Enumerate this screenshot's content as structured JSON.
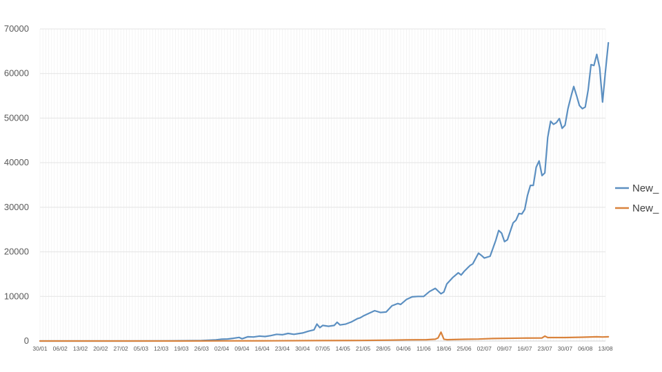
{
  "chart_data": {
    "type": "line",
    "title": "",
    "xlabel": "",
    "ylabel": "",
    "ylim": [
      0,
      70000
    ],
    "yticks": [
      0,
      10000,
      20000,
      30000,
      40000,
      50000,
      60000,
      70000
    ],
    "x_start": "30/01",
    "x_end": "13/08",
    "x_ticks": [
      "30/01",
      "06/02",
      "13/02",
      "20/02",
      "27/02",
      "05/03",
      "12/03",
      "19/03",
      "26/03",
      "02/04",
      "09/04",
      "16/04",
      "23/04",
      "30/04",
      "07/05",
      "14/05",
      "21/05",
      "28/05",
      "04/06",
      "11/06",
      "18/06",
      "25/06",
      "02/07",
      "09/07",
      "16/07",
      "23/07",
      "30/07",
      "06/08",
      "13/08"
    ],
    "grid": true,
    "legend_position": "right",
    "series": [
      {
        "name": "New_",
        "color": "#5b8fc1",
        "points": [
          [
            "30/01",
            0
          ],
          [
            "01/03",
            0
          ],
          [
            "14/03",
            10
          ],
          [
            "20/03",
            60
          ],
          [
            "26/03",
            100
          ],
          [
            "31/03",
            250
          ],
          [
            "02/04",
            400
          ],
          [
            "04/04",
            450
          ],
          [
            "06/04",
            600
          ],
          [
            "08/04",
            800
          ],
          [
            "09/04",
            500
          ],
          [
            "11/04",
            950
          ],
          [
            "13/04",
            900
          ],
          [
            "15/04",
            1100
          ],
          [
            "17/04",
            1000
          ],
          [
            "19/04",
            1200
          ],
          [
            "21/04",
            1500
          ],
          [
            "23/04",
            1400
          ],
          [
            "25/04",
            1700
          ],
          [
            "27/04",
            1500
          ],
          [
            "29/04",
            1700
          ],
          [
            "30/04",
            1800
          ],
          [
            "02/05",
            2200
          ],
          [
            "04/05",
            2500
          ],
          [
            "05/05",
            3800
          ],
          [
            "06/05",
            3000
          ],
          [
            "07/05",
            3500
          ],
          [
            "09/05",
            3300
          ],
          [
            "11/05",
            3500
          ],
          [
            "12/05",
            4200
          ],
          [
            "13/05",
            3600
          ],
          [
            "15/05",
            3800
          ],
          [
            "17/05",
            4300
          ],
          [
            "19/05",
            5000
          ],
          [
            "20/05",
            5200
          ],
          [
            "21/05",
            5600
          ],
          [
            "23/05",
            6200
          ],
          [
            "25/05",
            6800
          ],
          [
            "27/05",
            6400
          ],
          [
            "29/05",
            6500
          ],
          [
            "31/05",
            7900
          ],
          [
            "02/06",
            8400
          ],
          [
            "03/06",
            8200
          ],
          [
            "05/06",
            9300
          ],
          [
            "07/06",
            9900
          ],
          [
            "09/06",
            10000
          ],
          [
            "11/06",
            10000
          ],
          [
            "13/06",
            11100
          ],
          [
            "15/06",
            11800
          ],
          [
            "16/06",
            11200
          ],
          [
            "17/06",
            10600
          ],
          [
            "18/06",
            11000
          ],
          [
            "19/06",
            12800
          ],
          [
            "21/06",
            14200
          ],
          [
            "23/06",
            15300
          ],
          [
            "24/06",
            14800
          ],
          [
            "25/06",
            15600
          ],
          [
            "27/06",
            16900
          ],
          [
            "28/06",
            17300
          ],
          [
            "30/06",
            19700
          ],
          [
            "01/07",
            19200
          ],
          [
            "02/07",
            18600
          ],
          [
            "04/07",
            19000
          ],
          [
            "06/07",
            22600
          ],
          [
            "07/07",
            24800
          ],
          [
            "08/07",
            24200
          ],
          [
            "09/07",
            22300
          ],
          [
            "10/07",
            22700
          ],
          [
            "12/07",
            26500
          ],
          [
            "13/07",
            27100
          ],
          [
            "14/07",
            28600
          ],
          [
            "15/07",
            28500
          ],
          [
            "16/07",
            29500
          ],
          [
            "17/07",
            32700
          ],
          [
            "18/07",
            34900
          ],
          [
            "19/07",
            34900
          ],
          [
            "20/07",
            39000
          ],
          [
            "21/07",
            40400
          ],
          [
            "22/07",
            37100
          ],
          [
            "23/07",
            37700
          ],
          [
            "24/07",
            45700
          ],
          [
            "25/07",
            49300
          ],
          [
            "26/07",
            48600
          ],
          [
            "27/07",
            49000
          ],
          [
            "28/07",
            49900
          ],
          [
            "29/07",
            47700
          ],
          [
            "30/07",
            48400
          ],
          [
            "31/07",
            52100
          ],
          [
            "01/08",
            54700
          ],
          [
            "02/08",
            57100
          ],
          [
            "03/08",
            55000
          ],
          [
            "04/08",
            52800
          ],
          [
            "05/08",
            52100
          ],
          [
            "06/08",
            52500
          ],
          [
            "07/08",
            56300
          ],
          [
            "08/08",
            62000
          ],
          [
            "09/08",
            61800
          ],
          [
            "10/08",
            64300
          ],
          [
            "11/08",
            61300
          ],
          [
            "12/08",
            53600
          ],
          [
            "13/08",
            60500
          ],
          [
            "14/08",
            66900
          ]
        ]
      },
      {
        "name": "New_",
        "color": "#d9823b",
        "points": [
          [
            "30/01",
            0
          ],
          [
            "19/03",
            0
          ],
          [
            "02/04",
            30
          ],
          [
            "20/04",
            50
          ],
          [
            "05/05",
            90
          ],
          [
            "20/05",
            130
          ],
          [
            "31/05",
            200
          ],
          [
            "05/06",
            260
          ],
          [
            "12/06",
            300
          ],
          [
            "15/06",
            400
          ],
          [
            "16/06",
            700
          ],
          [
            "17/06",
            2000
          ],
          [
            "18/06",
            400
          ],
          [
            "19/06",
            300
          ],
          [
            "25/06",
            380
          ],
          [
            "30/06",
            440
          ],
          [
            "05/07",
            560
          ],
          [
            "15/07",
            650
          ],
          [
            "22/07",
            680
          ],
          [
            "23/07",
            1100
          ],
          [
            "24/07",
            780
          ],
          [
            "30/07",
            780
          ],
          [
            "05/08",
            850
          ],
          [
            "10/08",
            950
          ],
          [
            "12/08",
            900
          ],
          [
            "14/08",
            950
          ]
        ]
      }
    ]
  }
}
